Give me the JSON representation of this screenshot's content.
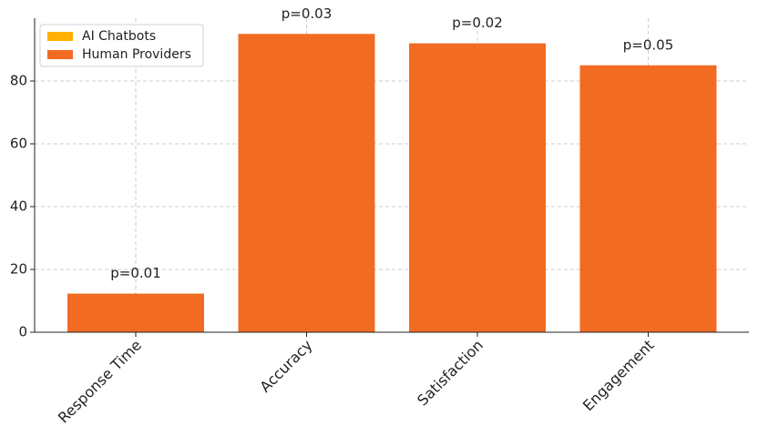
{
  "chart_data": {
    "type": "bar",
    "categories": [
      "Response Time",
      "Accuracy",
      "Satisfaction",
      "Engagement"
    ],
    "series": [
      {
        "name": "AI Chatbots",
        "color": "#ffb000",
        "values": [
          null,
          null,
          null,
          null
        ]
      },
      {
        "name": "Human Providers",
        "color": "#f26b22",
        "values": [
          12.3,
          95,
          92,
          85
        ]
      }
    ],
    "annotations": [
      "p=0.01",
      "p=0.03",
      "p=0.02",
      "p=0.05"
    ],
    "ylim": [
      0,
      100
    ],
    "yticks": [
      0,
      20,
      40,
      60,
      80
    ],
    "grid": true,
    "legend": "upper-left"
  }
}
